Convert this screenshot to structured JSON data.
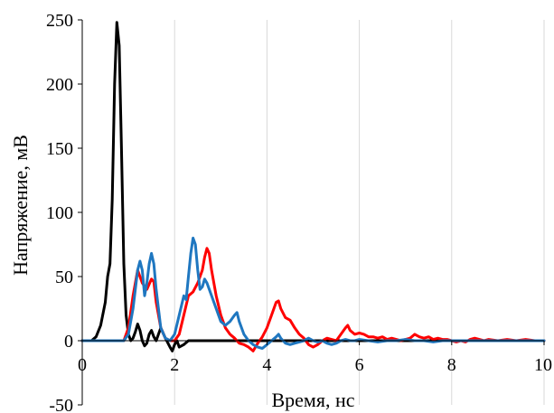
{
  "chart_data": {
    "type": "line",
    "title": "",
    "xlabel": "Время, нс",
    "ylabel": "Напряжение, мВ",
    "xlim": [
      0,
      10
    ],
    "ylim": [
      -50,
      250
    ],
    "x_ticks": [
      0,
      2,
      4,
      6,
      8,
      10
    ],
    "y_ticks": [
      -50,
      0,
      50,
      100,
      150,
      200,
      250
    ],
    "x_tick_labels": [
      "0",
      "2",
      "4",
      "6",
      "8",
      "10"
    ],
    "y_tick_labels": [
      "-50",
      "0",
      "50",
      "100",
      "150",
      "200",
      "250"
    ],
    "grid": "vertical",
    "legend": "none",
    "series": [
      {
        "color": "#000000",
        "points": [
          [
            0,
            0
          ],
          [
            0.2,
            0
          ],
          [
            0.3,
            3
          ],
          [
            0.4,
            12
          ],
          [
            0.5,
            30
          ],
          [
            0.55,
            50
          ],
          [
            0.6,
            60
          ],
          [
            0.65,
            110
          ],
          [
            0.7,
            200
          ],
          [
            0.75,
            248
          ],
          [
            0.8,
            230
          ],
          [
            0.85,
            150
          ],
          [
            0.9,
            60
          ],
          [
            0.95,
            20
          ],
          [
            1.0,
            5
          ],
          [
            1.05,
            0
          ],
          [
            1.1,
            2
          ],
          [
            1.15,
            7
          ],
          [
            1.2,
            13
          ],
          [
            1.25,
            8
          ],
          [
            1.3,
            0
          ],
          [
            1.35,
            -4
          ],
          [
            1.4,
            -2
          ],
          [
            1.45,
            5
          ],
          [
            1.5,
            8
          ],
          [
            1.55,
            3
          ],
          [
            1.6,
            0
          ],
          [
            1.7,
            10
          ],
          [
            1.8,
            2
          ],
          [
            1.9,
            -5
          ],
          [
            1.95,
            -8
          ],
          [
            2.0,
            -3
          ],
          [
            2.05,
            0
          ],
          [
            2.1,
            -5
          ],
          [
            2.2,
            -3
          ],
          [
            2.3,
            0
          ],
          [
            2.4,
            0
          ],
          [
            3,
            0
          ],
          [
            4,
            0
          ],
          [
            5,
            0
          ],
          [
            6,
            0
          ],
          [
            7,
            0
          ],
          [
            8,
            0
          ],
          [
            9,
            0
          ],
          [
            10,
            0
          ]
        ]
      },
      {
        "color": "#ff0000",
        "points": [
          [
            0,
            0
          ],
          [
            0.9,
            0
          ],
          [
            1.0,
            10
          ],
          [
            1.1,
            35
          ],
          [
            1.2,
            55
          ],
          [
            1.3,
            45
          ],
          [
            1.4,
            40
          ],
          [
            1.5,
            48
          ],
          [
            1.55,
            46
          ],
          [
            1.6,
            30
          ],
          [
            1.7,
            10
          ],
          [
            1.8,
            2
          ],
          [
            1.9,
            0
          ],
          [
            2.0,
            0
          ],
          [
            2.1,
            5
          ],
          [
            2.2,
            20
          ],
          [
            2.3,
            35
          ],
          [
            2.4,
            38
          ],
          [
            2.5,
            45
          ],
          [
            2.6,
            55
          ],
          [
            2.65,
            65
          ],
          [
            2.7,
            72
          ],
          [
            2.75,
            68
          ],
          [
            2.8,
            55
          ],
          [
            2.9,
            35
          ],
          [
            3.0,
            20
          ],
          [
            3.1,
            10
          ],
          [
            3.2,
            5
          ],
          [
            3.3,
            2
          ],
          [
            3.4,
            -2
          ],
          [
            3.5,
            -3
          ],
          [
            3.6,
            -5
          ],
          [
            3.7,
            -8
          ],
          [
            3.8,
            -2
          ],
          [
            3.9,
            3
          ],
          [
            4.0,
            10
          ],
          [
            4.1,
            20
          ],
          [
            4.2,
            30
          ],
          [
            4.25,
            31
          ],
          [
            4.3,
            25
          ],
          [
            4.4,
            18
          ],
          [
            4.5,
            16
          ],
          [
            4.6,
            10
          ],
          [
            4.7,
            5
          ],
          [
            4.8,
            2
          ],
          [
            4.9,
            -3
          ],
          [
            5.0,
            -5
          ],
          [
            5.1,
            -3
          ],
          [
            5.2,
            0
          ],
          [
            5.3,
            2
          ],
          [
            5.4,
            1
          ],
          [
            5.5,
            0
          ],
          [
            5.6,
            5
          ],
          [
            5.7,
            10
          ],
          [
            5.75,
            12
          ],
          [
            5.8,
            8
          ],
          [
            5.9,
            5
          ],
          [
            6.0,
            6
          ],
          [
            6.1,
            5
          ],
          [
            6.2,
            3
          ],
          [
            6.3,
            3
          ],
          [
            6.4,
            2
          ],
          [
            6.5,
            3
          ],
          [
            6.6,
            1
          ],
          [
            6.7,
            2
          ],
          [
            6.8,
            1
          ],
          [
            6.9,
            0
          ],
          [
            7.0,
            1
          ],
          [
            7.1,
            2
          ],
          [
            7.2,
            5
          ],
          [
            7.3,
            3
          ],
          [
            7.4,
            2
          ],
          [
            7.5,
            3
          ],
          [
            7.6,
            1
          ],
          [
            7.7,
            2
          ],
          [
            7.8,
            1
          ],
          [
            7.9,
            1
          ],
          [
            8.0,
            0
          ],
          [
            8.1,
            -1
          ],
          [
            8.2,
            0
          ],
          [
            8.3,
            -1
          ],
          [
            8.4,
            1
          ],
          [
            8.5,
            2
          ],
          [
            8.6,
            1
          ],
          [
            8.7,
            0
          ],
          [
            8.8,
            1
          ],
          [
            9.0,
            0
          ],
          [
            9.2,
            1
          ],
          [
            9.4,
            0
          ],
          [
            9.6,
            1
          ],
          [
            9.8,
            0
          ],
          [
            10,
            0
          ]
        ]
      },
      {
        "color": "#1f77c0",
        "points": [
          [
            0,
            0
          ],
          [
            0.9,
            0
          ],
          [
            1.0,
            5
          ],
          [
            1.1,
            25
          ],
          [
            1.2,
            55
          ],
          [
            1.25,
            62
          ],
          [
            1.3,
            55
          ],
          [
            1.35,
            35
          ],
          [
            1.4,
            45
          ],
          [
            1.45,
            60
          ],
          [
            1.5,
            68
          ],
          [
            1.55,
            60
          ],
          [
            1.6,
            40
          ],
          [
            1.7,
            10
          ],
          [
            1.8,
            2
          ],
          [
            1.9,
            0
          ],
          [
            2.0,
            5
          ],
          [
            2.1,
            20
          ],
          [
            2.2,
            35
          ],
          [
            2.25,
            32
          ],
          [
            2.3,
            50
          ],
          [
            2.35,
            68
          ],
          [
            2.4,
            80
          ],
          [
            2.45,
            75
          ],
          [
            2.5,
            55
          ],
          [
            2.55,
            40
          ],
          [
            2.6,
            42
          ],
          [
            2.65,
            48
          ],
          [
            2.7,
            45
          ],
          [
            2.8,
            35
          ],
          [
            2.9,
            25
          ],
          [
            3.0,
            15
          ],
          [
            3.1,
            12
          ],
          [
            3.2,
            15
          ],
          [
            3.3,
            20
          ],
          [
            3.35,
            22
          ],
          [
            3.4,
            15
          ],
          [
            3.5,
            5
          ],
          [
            3.6,
            0
          ],
          [
            3.7,
            -3
          ],
          [
            3.8,
            -5
          ],
          [
            3.9,
            -6
          ],
          [
            4.0,
            -3
          ],
          [
            4.1,
            0
          ],
          [
            4.2,
            3
          ],
          [
            4.25,
            5
          ],
          [
            4.3,
            2
          ],
          [
            4.4,
            -2
          ],
          [
            4.5,
            -3
          ],
          [
            4.6,
            -2
          ],
          [
            4.7,
            -1
          ],
          [
            4.8,
            0
          ],
          [
            4.9,
            2
          ],
          [
            5.0,
            0
          ],
          [
            5.1,
            -1
          ],
          [
            5.2,
            0
          ],
          [
            5.3,
            -2
          ],
          [
            5.4,
            -3
          ],
          [
            5.5,
            -2
          ],
          [
            5.6,
            0
          ],
          [
            5.7,
            1
          ],
          [
            5.8,
            0
          ],
          [
            5.9,
            0
          ],
          [
            6.0,
            1
          ],
          [
            6.2,
            0
          ],
          [
            6.4,
            -1
          ],
          [
            6.6,
            0
          ],
          [
            6.8,
            0
          ],
          [
            7.0,
            1
          ],
          [
            7.2,
            0
          ],
          [
            7.4,
            0
          ],
          [
            7.6,
            -1
          ],
          [
            7.8,
            0
          ],
          [
            8.0,
            0
          ],
          [
            8.5,
            0
          ],
          [
            9.0,
            0
          ],
          [
            9.5,
            0
          ],
          [
            10,
            0
          ]
        ]
      }
    ]
  }
}
